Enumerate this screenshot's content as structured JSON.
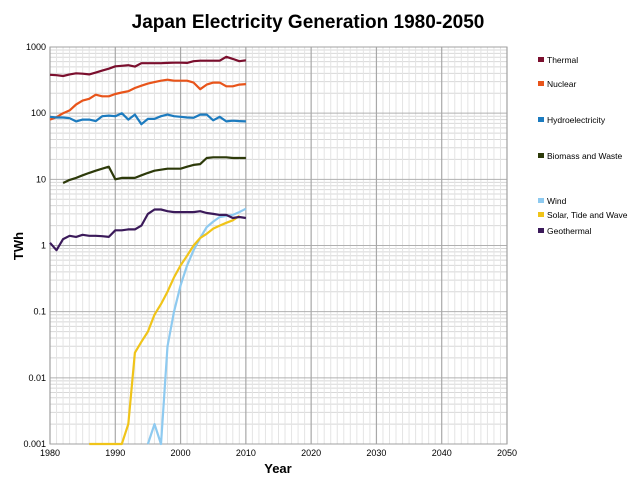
{
  "chart_data": {
    "type": "line",
    "title": "Japan Electricity Generation 1980-2050",
    "xlabel": "Year",
    "ylabel": "TWh",
    "xlim": [
      1980,
      2050
    ],
    "ylim": [
      0.001,
      1000
    ],
    "yscale": "log",
    "grid": true,
    "legend_position": "right",
    "x_ticks": [
      "1980",
      "1990",
      "2000",
      "2010",
      "2020",
      "2030",
      "2040",
      "2050"
    ],
    "y_ticks": [
      "1000",
      "100",
      "10",
      "1",
      "0.1",
      "0.01",
      "0.001"
    ],
    "series": [
      {
        "name": "Thermal",
        "color": "#7b0f2e",
        "x": [
          1980,
          1981,
          1982,
          1983,
          1984,
          1985,
          1986,
          1987,
          1988,
          1989,
          1990,
          1991,
          1992,
          1993,
          1994,
          1995,
          1996,
          1997,
          1998,
          1999,
          2000,
          2001,
          2002,
          2003,
          2004,
          2005,
          2006,
          2007,
          2008,
          2009,
          2010
        ],
        "values": [
          380,
          375,
          365,
          385,
          400,
          395,
          385,
          410,
          440,
          470,
          510,
          520,
          530,
          505,
          570,
          570,
          570,
          570,
          575,
          580,
          580,
          575,
          610,
          620,
          620,
          620,
          620,
          710,
          660,
          610,
          630
        ]
      },
      {
        "name": "Nuclear",
        "color": "#e8541a",
        "x": [
          1980,
          1981,
          1982,
          1983,
          1984,
          1985,
          1986,
          1987,
          1988,
          1989,
          1990,
          1991,
          1992,
          1993,
          1994,
          1995,
          1996,
          1997,
          1998,
          1999,
          2000,
          2001,
          2002,
          2003,
          2004,
          2005,
          2006,
          2007,
          2008,
          2009,
          2010
        ],
        "values": [
          80,
          87,
          100,
          110,
          135,
          155,
          165,
          190,
          180,
          180,
          195,
          205,
          215,
          240,
          260,
          280,
          295,
          310,
          320,
          310,
          310,
          310,
          290,
          230,
          270,
          290,
          290,
          255,
          255,
          270,
          275
        ]
      },
      {
        "name": "Hydroelectricity",
        "color": "#1c7bbf",
        "x": [
          1980,
          1981,
          1982,
          1983,
          1984,
          1985,
          1986,
          1987,
          1988,
          1989,
          1990,
          1991,
          1992,
          1993,
          1994,
          1995,
          1996,
          1997,
          1998,
          1999,
          2000,
          2001,
          2002,
          2003,
          2004,
          2005,
          2006,
          2007,
          2008,
          2009,
          2010
        ],
        "values": [
          88,
          86,
          86,
          84,
          75,
          80,
          80,
          76,
          90,
          92,
          90,
          100,
          80,
          95,
          68,
          82,
          82,
          90,
          95,
          90,
          88,
          86,
          85,
          95,
          95,
          78,
          88,
          75,
          77,
          76,
          75
        ]
      },
      {
        "name": "Biomass and Waste",
        "color": "#2d3a0a",
        "x": [
          1982,
          1983,
          1984,
          1985,
          1986,
          1987,
          1988,
          1989,
          1990,
          1991,
          1992,
          1993,
          1994,
          1995,
          1996,
          1997,
          1998,
          1999,
          2000,
          2001,
          2002,
          2003,
          2004,
          2005,
          2006,
          2007,
          2008,
          2009,
          2010
        ],
        "values": [
          8.8,
          9.8,
          10.5,
          11.5,
          12.5,
          13.5,
          14.5,
          15.5,
          10,
          10.5,
          10.5,
          10.5,
          11.5,
          12.5,
          13.5,
          14,
          14.5,
          14.5,
          14.5,
          15.5,
          16.5,
          17,
          21,
          21.5,
          21.5,
          21.5,
          21,
          21,
          21
        ]
      },
      {
        "name": "Wind",
        "color": "#8ecaf0",
        "x": [
          1995,
          1996,
          1997,
          1998,
          1999,
          2000,
          2001,
          2002,
          2003,
          2004,
          2005,
          2006,
          2007,
          2008,
          2009,
          2010
        ],
        "values": [
          0.001,
          0.002,
          0.001,
          0.03,
          0.1,
          0.25,
          0.5,
          0.85,
          1.3,
          1.9,
          2.3,
          2.7,
          2.8,
          2.9,
          3.2,
          3.6
        ]
      },
      {
        "name": "Solar, Tide and Wave",
        "color": "#f0c419",
        "x": [
          1986,
          1987,
          1988,
          1989,
          1990,
          1991,
          1992,
          1993,
          1994,
          1995,
          1996,
          1997,
          1998,
          1999,
          2000,
          2001,
          2002,
          2003,
          2004,
          2005,
          2006,
          2007,
          2008,
          2009
        ],
        "values": [
          0.001,
          0.001,
          0.001,
          0.001,
          0.001,
          0.001,
          0.002,
          0.024,
          0.035,
          0.05,
          0.09,
          0.13,
          0.2,
          0.33,
          0.5,
          0.7,
          1.0,
          1.3,
          1.5,
          1.8,
          2.0,
          2.2,
          2.4,
          2.8
        ]
      },
      {
        "name": "Geothermal",
        "color": "#3b1a5a",
        "x": [
          1980,
          1981,
          1982,
          1983,
          1984,
          1985,
          1986,
          1987,
          1988,
          1989,
          1990,
          1991,
          1992,
          1993,
          1994,
          1995,
          1996,
          1997,
          1998,
          1999,
          2000,
          2001,
          2002,
          2003,
          2004,
          2005,
          2006,
          2007,
          2008,
          2009,
          2010
        ],
        "values": [
          1.1,
          0.85,
          1.25,
          1.4,
          1.35,
          1.45,
          1.4,
          1.4,
          1.38,
          1.35,
          1.7,
          1.7,
          1.75,
          1.75,
          2.0,
          3.0,
          3.5,
          3.5,
          3.3,
          3.2,
          3.2,
          3.2,
          3.2,
          3.3,
          3.1,
          3.0,
          2.9,
          2.9,
          2.6,
          2.7,
          2.6
        ]
      }
    ]
  }
}
